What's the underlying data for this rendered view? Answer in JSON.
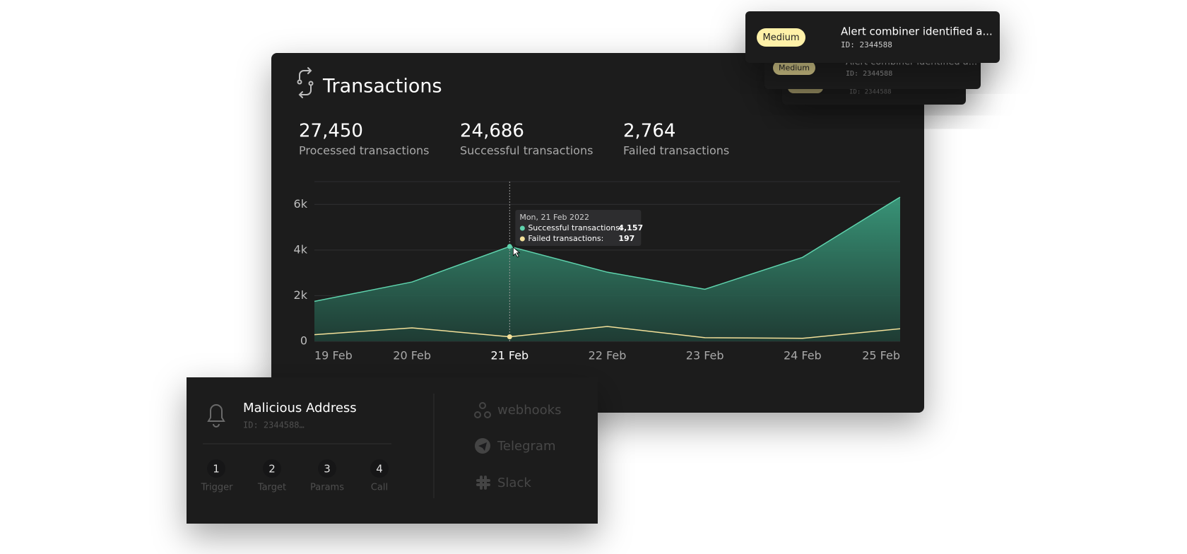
{
  "transactions_card": {
    "title": "Transactions",
    "stats": [
      {
        "value": "27,450",
        "label": "Processed transactions"
      },
      {
        "value": "24,686",
        "label": "Successful transactions"
      },
      {
        "value": "2,764",
        "label": "Failed transactions"
      }
    ]
  },
  "chart_data": {
    "type": "area",
    "categories": [
      "19 Feb",
      "20 Feb",
      "21 Feb",
      "22 Feb",
      "23 Feb",
      "24 Feb",
      "25 Feb"
    ],
    "series": [
      {
        "color": "#5fd3ad",
        "area": true,
        "values": [
          1750,
          2600,
          4157,
          3030,
          2280,
          3680,
          6320
        ]
      },
      {
        "color": "#f4e19a",
        "area": false,
        "values": [
          290,
          590,
          197,
          650,
          160,
          130,
          550
        ]
      }
    ],
    "ylim": [
      0,
      7000
    ],
    "yticks": [
      0,
      {
        "value": 2000,
        "label": "2k"
      },
      {
        "value": 4000,
        "label": "4k"
      },
      {
        "value": 6000,
        "label": "6k"
      }
    ],
    "grid": true,
    "tooltip": {
      "x": "21 Feb",
      "title": "Mon, 21 Feb 2022",
      "items": [
        {
          "label": "Successful transactions:",
          "value": "4,157"
        },
        {
          "label": "Failed transactions:",
          "value": "197"
        }
      ]
    }
  },
  "alerts": [
    {
      "badge": "Medium",
      "title": "Alert combiner identified a...",
      "id": "ID: 2344588"
    },
    {
      "badge": "Medium",
      "title": "Alert combiner identified a...",
      "id": "ID: 2344588"
    },
    {
      "id": "ID: 2344588"
    }
  ],
  "alert_rule_card": {
    "title": "Malicious Address",
    "id": "ID: 2344588…",
    "steps": [
      {
        "number": "1",
        "label": "Trigger"
      },
      {
        "number": "2",
        "label": "Target"
      },
      {
        "number": "3",
        "label": "Params"
      },
      {
        "number": "4",
        "label": "Call"
      }
    ],
    "integrations": [
      "webhooks",
      "Telegram",
      "Slack"
    ]
  }
}
